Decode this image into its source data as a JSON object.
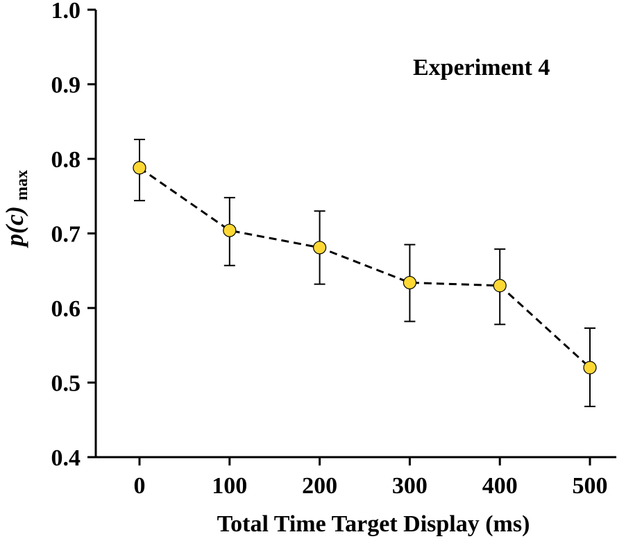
{
  "chart_data": {
    "type": "line",
    "title": "",
    "annotation": "Experiment 4",
    "xlabel": "Total Time Target Display (ms)",
    "ylabel_main": "p(c)",
    "ylabel_sub": "max",
    "x": [
      0,
      100,
      200,
      300,
      400,
      500
    ],
    "xticks": [
      "0",
      "100",
      "200",
      "300",
      "400",
      "500"
    ],
    "ylim": [
      0.4,
      1.0
    ],
    "yticks": [
      "0.4",
      "0.5",
      "0.6",
      "0.7",
      "0.8",
      "0.9",
      "1.0"
    ],
    "series": [
      {
        "name": "p(c) max",
        "values": [
          0.788,
          0.704,
          0.681,
          0.634,
          0.63,
          0.52
        ],
        "err_low": [
          0.744,
          0.657,
          0.632,
          0.582,
          0.578,
          0.468
        ],
        "err_high": [
          0.826,
          0.748,
          0.73,
          0.685,
          0.679,
          0.573
        ],
        "marker_color": "#FDD835",
        "line_style": "dashed"
      }
    ],
    "grid": false
  }
}
